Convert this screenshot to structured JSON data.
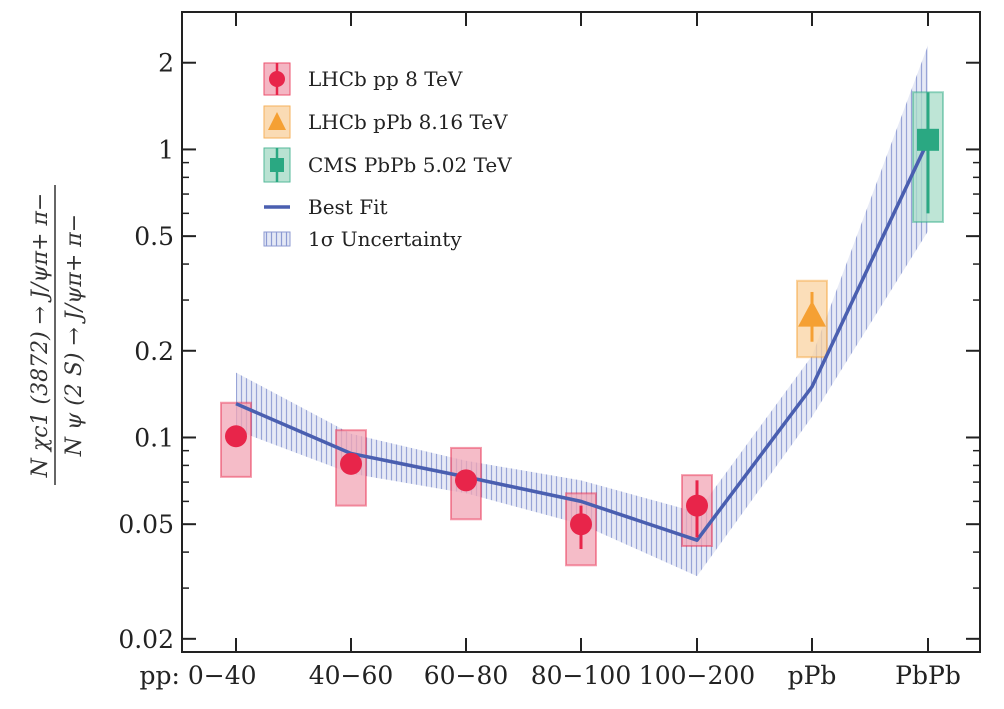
{
  "chart_data": {
    "type": "scatter",
    "y_scale": "log",
    "ylim": [
      0.018,
      3.0
    ],
    "ylabel": {
      "numerator": "N χc1 (3872) → J/ψπ+ π−",
      "denominator": "N ψ (2 S) → J/ψπ+ π−"
    },
    "categories": [
      "pp: 0−40",
      "40−60",
      "60−80",
      "80−100",
      "100−200",
      "pPb",
      "PbPb"
    ],
    "y_ticks": [
      {
        "value": 0.02,
        "label": "0.02"
      },
      {
        "value": 0.05,
        "label": "0.05"
      },
      {
        "value": 0.1,
        "label": "0.1"
      },
      {
        "value": 0.2,
        "label": "0.2"
      },
      {
        "value": 0.5,
        "label": "0.5"
      },
      {
        "value": 1,
        "label": "1"
      },
      {
        "value": 2,
        "label": "2"
      }
    ],
    "series": [
      {
        "name": "LHCb pp 8 TeV",
        "marker": "circle",
        "color": "#e8254a",
        "box_color": "#f2a5b5",
        "points": [
          {
            "cat": 0,
            "y": 0.101,
            "stat": [
              0.094,
              0.108
            ],
            "syst": [
              0.073,
              0.132
            ]
          },
          {
            "cat": 1,
            "y": 0.081,
            "stat": [
              0.075,
              0.087
            ],
            "syst": [
              0.058,
              0.106
            ]
          },
          {
            "cat": 2,
            "y": 0.071,
            "stat": [
              0.066,
              0.077
            ],
            "syst": [
              0.052,
              0.092
            ]
          },
          {
            "cat": 3,
            "y": 0.05,
            "stat": [
              0.041,
              0.058
            ],
            "syst": [
              0.036,
              0.064
            ]
          },
          {
            "cat": 4,
            "y": 0.058,
            "stat": [
              0.045,
              0.071
            ],
            "syst": [
              0.042,
              0.074
            ]
          }
        ]
      },
      {
        "name": "LHCb pPb 8.16 TeV",
        "marker": "triangle",
        "color": "#f5a033",
        "box_color": "#fad3a2",
        "points": [
          {
            "cat": 5,
            "y": 0.265,
            "stat": [
              0.215,
              0.32
            ],
            "syst": [
              0.19,
              0.35
            ]
          }
        ]
      },
      {
        "name": "CMS PbPb 5.02 TeV",
        "marker": "square",
        "color": "#2aa882",
        "box_color": "#a8dcc8",
        "points": [
          {
            "cat": 6,
            "y": 1.08,
            "stat": [
              0.6,
              1.58
            ],
            "syst": [
              0.56,
              1.58
            ]
          }
        ]
      }
    ],
    "best_fit": {
      "name": "Best Fit",
      "color": "#4a5fb0",
      "y": [
        0.131,
        0.088,
        0.073,
        0.06,
        0.044,
        0.15,
        1.07
      ]
    },
    "uncertainty_band": {
      "name": "1σ Uncertainty",
      "color": "#8c9ad2",
      "lower": [
        0.106,
        0.075,
        0.064,
        0.05,
        0.033,
        0.118,
        0.52
      ],
      "upper": [
        0.168,
        0.103,
        0.083,
        0.071,
        0.055,
        0.192,
        2.3
      ]
    },
    "legend": {
      "placement": "top-left",
      "entries": [
        {
          "label": "LHCb pp 8 TeV",
          "kind": "circle"
        },
        {
          "label": "LHCb pPb 8.16 TeV",
          "kind": "triangle"
        },
        {
          "label": "CMS PbPb 5.02 TeV",
          "kind": "square"
        },
        {
          "label": "Best Fit",
          "kind": "line"
        },
        {
          "label": "1σ Uncertainty",
          "kind": "band"
        }
      ]
    }
  }
}
